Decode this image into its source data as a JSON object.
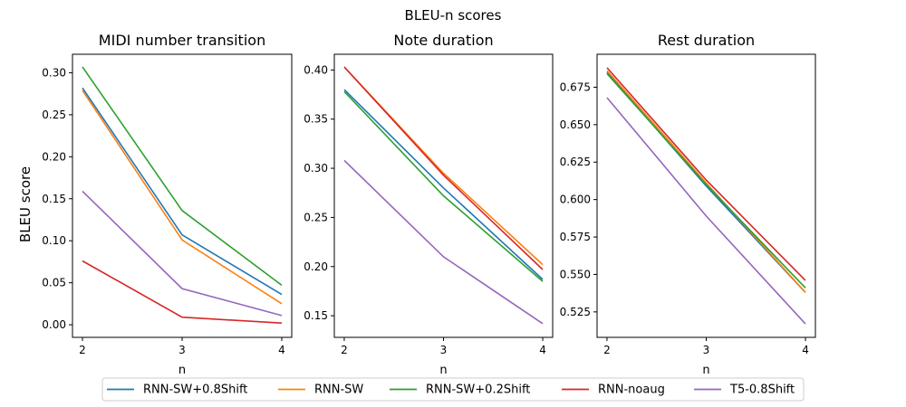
{
  "figure": {
    "title": "BLEU-n scores",
    "ylabel": "BLEU score"
  },
  "legend": [
    "RNN-SW+0.8Shift",
    "RNN-SW",
    "RNN-SW+0.2Shift",
    "RNN-noaug",
    "T5-0.8Shift"
  ],
  "colors": [
    "#1f77b4",
    "#ff7f0e",
    "#2ca02c",
    "#d62728",
    "#9467bd"
  ],
  "chart_data": [
    {
      "type": "line",
      "title": "MIDI number transition",
      "xlabel": "n",
      "x": [
        2,
        3,
        4
      ],
      "xticks": [
        "2",
        "3",
        "4"
      ],
      "ylim": [
        -0.015,
        0.322
      ],
      "yticks": [
        "0.00",
        "0.05",
        "0.10",
        "0.15",
        "0.20",
        "0.25",
        "0.30"
      ],
      "series": [
        {
          "name": "RNN-SW+0.8Shift",
          "values": [
            0.282,
            0.107,
            0.036
          ]
        },
        {
          "name": "RNN-SW",
          "values": [
            0.279,
            0.101,
            0.025
          ]
        },
        {
          "name": "RNN-SW+0.2Shift",
          "values": [
            0.307,
            0.136,
            0.047
          ]
        },
        {
          "name": "RNN-noaug",
          "values": [
            0.076,
            0.009,
            0.002
          ]
        },
        {
          "name": "T5-0.8Shift",
          "values": [
            0.159,
            0.043,
            0.011
          ]
        }
      ]
    },
    {
      "type": "line",
      "title": "Note duration",
      "xlabel": "n",
      "x": [
        2,
        3,
        4
      ],
      "xticks": [
        "2",
        "3",
        "4"
      ],
      "ylim": [
        0.128,
        0.416
      ],
      "yticks": [
        "0.15",
        "0.20",
        "0.25",
        "0.30",
        "0.35",
        "0.40"
      ],
      "series": [
        {
          "name": "RNN-SW+0.8Shift",
          "values": [
            0.38,
            0.28,
            0.187
          ]
        },
        {
          "name": "RNN-SW",
          "values": [
            0.403,
            0.295,
            0.202
          ]
        },
        {
          "name": "RNN-SW+0.2Shift",
          "values": [
            0.378,
            0.272,
            0.185
          ]
        },
        {
          "name": "RNN-noaug",
          "values": [
            0.403,
            0.293,
            0.197
          ]
        },
        {
          "name": "T5-0.8Shift",
          "values": [
            0.308,
            0.21,
            0.142
          ]
        }
      ]
    },
    {
      "type": "line",
      "title": "Rest duration",
      "xlabel": "n",
      "x": [
        2,
        3,
        4
      ],
      "xticks": [
        "2",
        "3",
        "4"
      ],
      "ylim": [
        0.508,
        0.697
      ],
      "yticks": [
        "0.525",
        "0.550",
        "0.575",
        "0.600",
        "0.625",
        "0.650",
        "0.675"
      ],
      "series": [
        {
          "name": "RNN-SW+0.8Shift",
          "values": [
            0.685,
            0.609,
            0.538
          ]
        },
        {
          "name": "RNN-SW",
          "values": [
            0.686,
            0.611,
            0.538
          ]
        },
        {
          "name": "RNN-SW+0.2Shift",
          "values": [
            0.684,
            0.61,
            0.541
          ]
        },
        {
          "name": "RNN-noaug",
          "values": [
            0.688,
            0.613,
            0.546
          ]
        },
        {
          "name": "T5-0.8Shift",
          "values": [
            0.668,
            0.589,
            0.517
          ]
        }
      ]
    }
  ]
}
